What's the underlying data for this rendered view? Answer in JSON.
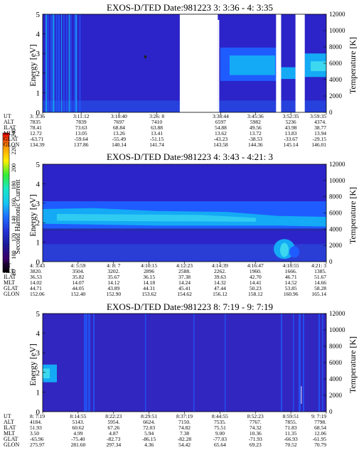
{
  "chart_data": [
    {
      "type": "heatmap",
      "title": "EXOS-D/TED   Date:981223  3: 3:36 -  4: 3:35",
      "ylabel": "Energy [eV]",
      "ylabel_right": "Temperature [K]",
      "ylim": [
        0,
        5
      ],
      "ylim_right": [
        0,
        12000
      ],
      "yticks": [
        "0",
        "1",
        "2",
        "3",
        "4",
        "5"
      ],
      "yticks_right": [
        "0",
        "2000",
        "4000",
        "6000",
        "8000",
        "10000",
        "12000"
      ],
      "data_gaps": [
        [
          "3:30:40",
          "3:38:10"
        ],
        [
          "3:49:40",
          "3:50:40"
        ],
        [
          "3:53:30",
          "3:55:20"
        ]
      ],
      "rows": [
        {
          "label": "UT",
          "values": [
            "3: 3:36",
            "3:11:12",
            "3:18:40",
            "3:26: 8",
            "3:38:44",
            "3:45:36",
            "3:52:35",
            "3:59:35"
          ]
        },
        {
          "label": "ALT",
          "values": [
            "7835",
            "7839",
            "7697",
            "7410",
            "6597",
            "5982",
            "5236",
            "4374."
          ]
        },
        {
          "label": "ILAT",
          "values": [
            "78.41",
            "73.63",
            "68.84",
            "63.88",
            "54.88",
            "49.56",
            "43.98",
            "38.77"
          ]
        },
        {
          "label": "MLT",
          "values": [
            "12.72",
            "13.05",
            "13.26",
            "13.41",
            "13.62",
            "13.72",
            "13.83",
            "13.94"
          ]
        },
        {
          "label": "GLAT",
          "values": [
            "-63.71",
            "-59.64",
            "-55.49",
            "-51.15",
            "-43.23",
            "-38.53",
            "-33.67",
            "-29.15"
          ]
        },
        {
          "label": "GLON",
          "values": [
            "134.39",
            "137.86",
            "140.14",
            "141.74",
            "143.58",
            "144.36",
            "145.14",
            "146.01"
          ]
        }
      ]
    },
    {
      "type": "heatmap",
      "title": "EXOS-D/TED   Date:981223  4: 3:43 -  4:21: 3",
      "ylabel": "Energy [eV]",
      "ylabel_right": "Temperature [K]",
      "ylim": [
        0,
        5
      ],
      "ylim_right": [
        0,
        12000
      ],
      "yticks": [
        "0",
        "1",
        "2",
        "3",
        "4",
        "5"
      ],
      "yticks_right": [
        "0",
        "2000",
        "4000",
        "6000",
        "8000",
        "10000",
        "12000"
      ],
      "rows": [
        {
          "label": "UT",
          "values": [
            "4: 3:43",
            "4: 5:59",
            "4: 8: 7",
            "4:10:15",
            "4:12:23",
            "4:14:39",
            "4:16:47",
            "4:18:55",
            "4:21: 3"
          ]
        },
        {
          "label": "ALT",
          "values": [
            "3820.",
            "3504.",
            "3202.",
            "2896",
            "2588.",
            "2262.",
            "1960.",
            "1666.",
            "1385."
          ]
        },
        {
          "label": "ILAT",
          "values": [
            "36.53",
            "35.82",
            "35.67",
            "36.15",
            "37.38",
            "39.63",
            "42.70",
            "46.71",
            "51.67"
          ]
        },
        {
          "label": "MLT",
          "values": [
            "14.02",
            "14.07",
            "14.12",
            "14.18",
            "14.24",
            "14.32",
            "14.41",
            "14.52",
            "14.66"
          ]
        },
        {
          "label": "GLAT",
          "values": [
            "44.71",
            "44.05",
            "43.89",
            "44.31",
            "45.41",
            "47.44",
            "50.23",
            "53.85",
            "58.28"
          ]
        },
        {
          "label": "GLON",
          "values": [
            "152.06",
            "152.40",
            "152.90",
            "153.62",
            "154.62",
            "156.12",
            "158.12",
            "160.96",
            "165.14"
          ]
        }
      ]
    },
    {
      "type": "heatmap",
      "title": "EXOS-D/TED   Date:981223  8: 7:19 -  9: 7:19",
      "ylabel": "Energy [eV]",
      "ylabel_right": "Temperature [K]",
      "ylim": [
        0,
        5
      ],
      "ylim_right": [
        0,
        12000
      ],
      "yticks": [
        "0",
        "1",
        "2",
        "3",
        "4",
        "5"
      ],
      "yticks_right": [
        "0",
        "2000",
        "4000",
        "6000",
        "8000",
        "10000",
        "12000"
      ],
      "rows": [
        {
          "label": "UT",
          "values": [
            "8: 7:19",
            "8:14:55",
            "8:22:23",
            "8:29:51",
            "8:37:19",
            "8:44:55",
            "8:52:23",
            "8:59:51",
            "9: 7:19"
          ]
        },
        {
          "label": "ALT",
          "values": [
            "4184.",
            "5143.",
            "5954.",
            "6624.",
            "7150.",
            "7535.",
            "7767.",
            "7855.",
            "7798."
          ]
        },
        {
          "label": "ILAT",
          "values": [
            "51.93",
            "60.62",
            "67.26",
            "72.03",
            "74.82",
            "75.51",
            "74.32",
            "71.83",
            "68.54"
          ]
        },
        {
          "label": "MLT",
          "values": [
            "3.50",
            "4.99",
            "4.87",
            "5.94",
            "7.38",
            "9.00",
            "10.36",
            "11.35",
            "12.06"
          ]
        },
        {
          "label": "GLAT",
          "values": [
            "-65.96",
            "-75.40",
            "-82.73",
            "-86.15",
            "-82.28",
            "-77.03",
            "-71.93",
            "-66.93",
            "-61.95"
          ]
        },
        {
          "label": "GLON",
          "values": [
            "275.97",
            "281.60",
            "297.34",
            "4.36",
            "54.42",
            "65.64",
            "69.23",
            "70.52",
            "70.79"
          ]
        }
      ]
    }
  ],
  "colorbar": {
    "label": "Second Harmonic Current",
    "ticks": [
      "80",
      "100",
      "120",
      "140",
      "160",
      "180",
      "200",
      "220",
      "240"
    ],
    "range": [
      80,
      240
    ],
    "colors": [
      "#000000",
      "#3a006a",
      "#1a1a9a",
      "#2233d8",
      "#1f70ff",
      "#14c8f0",
      "#19e8c8",
      "#33ee33",
      "#ffee00",
      "#ff9900",
      "#ff0000"
    ]
  },
  "colors": {
    "background": "#2c24c8",
    "mid": "#1f5cff",
    "bright": "#14aaf5",
    "cyan": "#3cd8f0"
  }
}
